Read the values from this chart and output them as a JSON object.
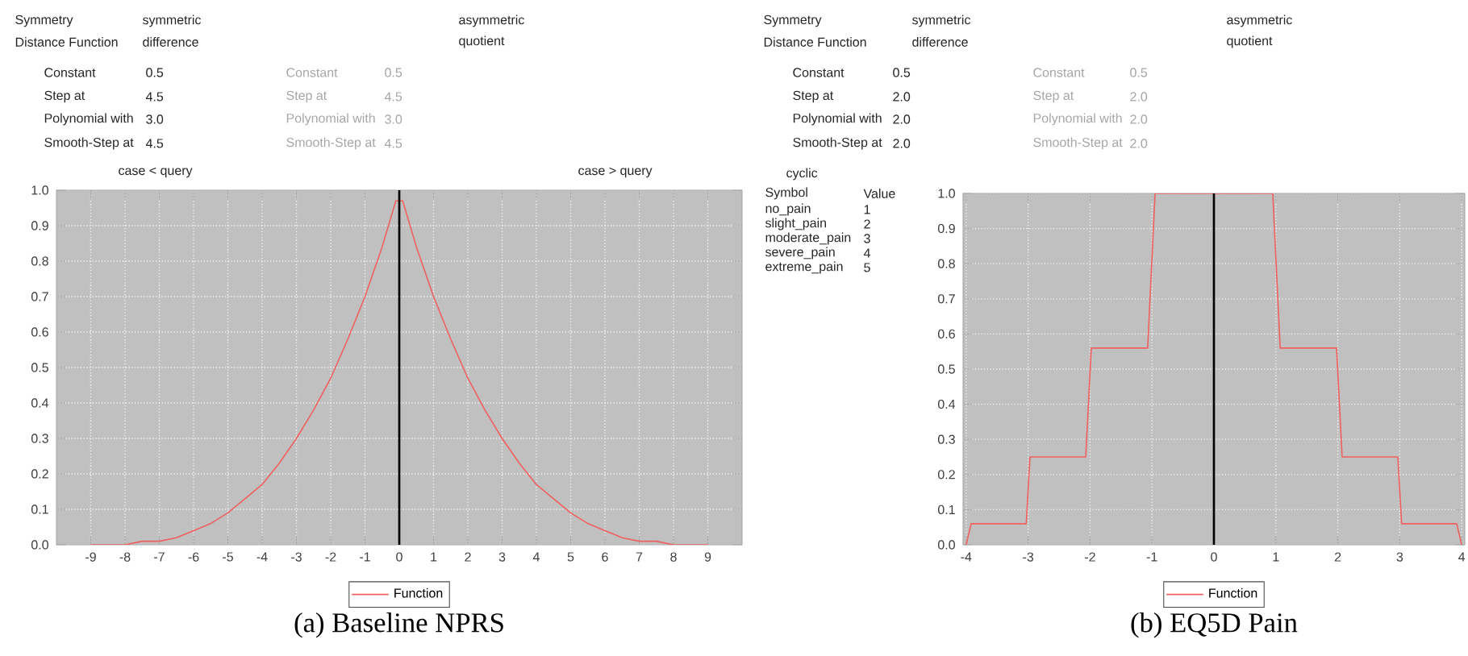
{
  "chart_data": [
    {
      "type": "line",
      "title": "(a) Baseline NPRS",
      "annotations": [
        "Symmetry",
        "symmetric",
        "asymmetric",
        "Distance Function",
        "difference",
        "quotient",
        "Constant",
        "0.5",
        "Constant",
        "0.5",
        "Step at",
        "4.5",
        "Step at",
        "4.5",
        "Polynomial with",
        "3.0",
        "Polynomial with",
        "3.0",
        "Smooth-Step at",
        "4.5",
        "Smooth-Step at",
        "4.5",
        "case < query",
        "case > query"
      ],
      "x": [
        -9,
        -8.5,
        -8,
        -7.5,
        -7,
        -6.5,
        -6,
        -5.5,
        -5,
        -4.5,
        -4,
        -3.5,
        -3,
        -2.5,
        -2,
        -1.5,
        -1,
        -0.5,
        -0.1,
        0.1,
        0.5,
        1,
        1.5,
        2,
        2.5,
        3,
        3.5,
        4,
        4.5,
        5,
        5.5,
        6,
        6.5,
        7,
        7.5,
        8,
        8.5,
        9
      ],
      "series": [
        {
          "name": "Function",
          "color": "#f06060",
          "values": [
            0,
            0,
            0,
            0.01,
            0.01,
            0.02,
            0.04,
            0.06,
            0.09,
            0.13,
            0.17,
            0.23,
            0.3,
            0.38,
            0.47,
            0.58,
            0.7,
            0.84,
            0.97,
            0.97,
            0.84,
            0.7,
            0.58,
            0.47,
            0.38,
            0.3,
            0.23,
            0.17,
            0.13,
            0.09,
            0.06,
            0.04,
            0.02,
            0.01,
            0.01,
            0,
            0,
            0
          ]
        }
      ],
      "xlim": [
        -10,
        10
      ],
      "xticks": [
        -9,
        -8,
        -7,
        -6,
        -5,
        -4,
        -3,
        -2,
        -1,
        0,
        1,
        2,
        3,
        4,
        5,
        6,
        7,
        8,
        9
      ],
      "ylim": [
        0,
        1
      ],
      "yticks": [
        {
          "value": 0,
          "label": "0.0"
        },
        {
          "value": 0.1,
          "label": "0.1"
        },
        {
          "value": 0.2,
          "label": "0.2"
        },
        {
          "value": 0.3,
          "label": "0.3"
        },
        {
          "value": 0.4,
          "label": "0.4"
        },
        {
          "value": 0.5,
          "label": "0.5"
        },
        {
          "value": 0.6,
          "label": "0.6"
        },
        {
          "value": 0.7,
          "label": "0.7"
        },
        {
          "value": 0.8,
          "label": "0.8"
        },
        {
          "value": 0.9,
          "label": "0.9"
        },
        {
          "value": 1,
          "label": "1.0"
        }
      ],
      "ref_lines": [
        {
          "axis": "x",
          "value": 0,
          "color": "#000000"
        }
      ],
      "grid": true,
      "legend": "bottom"
    },
    {
      "type": "line",
      "title": "(b) EQ5D Pain",
      "annotations": [
        "Symmetry",
        "symmetric",
        "asymmetric",
        "Distance Function",
        "difference",
        "quotient",
        "Constant",
        "0.5",
        "Constant",
        "0.5",
        "Step at",
        "2.0",
        "Step at",
        "2.0",
        "Polynomial with",
        "2.0",
        "Polynomial with",
        "2.0",
        "Smooth-Step at",
        "2.0",
        "Smooth-Step at",
        "2.0",
        "cyclic",
        "Symbol",
        "Value",
        "no_pain",
        "1",
        "slight_pain",
        "2",
        "moderate_pain",
        "3",
        "severe_pain",
        "4",
        "extreme_pain",
        "5"
      ],
      "x": [
        -4,
        -3.92,
        -3.03,
        -2.97,
        -2.07,
        -1.98,
        -1.07,
        -0.95,
        0.95,
        1.07,
        1.98,
        2.07,
        2.97,
        3.03,
        3.92,
        4
      ],
      "series": [
        {
          "name": "Function",
          "color": "#f06060",
          "values": [
            0,
            0.06,
            0.06,
            0.25,
            0.25,
            0.56,
            0.56,
            1,
            1,
            0.56,
            0.56,
            0.25,
            0.25,
            0.06,
            0.06,
            0
          ]
        }
      ],
      "xlim": [
        -4.05,
        4.05
      ],
      "xticks": [
        -4,
        -3,
        -2,
        -1,
        0,
        1,
        2,
        3,
        4
      ],
      "ylim": [
        0,
        1
      ],
      "yticks": [
        {
          "value": 0,
          "label": "0.0"
        },
        {
          "value": 0.1,
          "label": "0.1"
        },
        {
          "value": 0.2,
          "label": "0.2"
        },
        {
          "value": 0.3,
          "label": "0.3"
        },
        {
          "value": 0.4,
          "label": "0.4"
        },
        {
          "value": 0.5,
          "label": "0.5"
        },
        {
          "value": 0.6,
          "label": "0.6"
        },
        {
          "value": 0.7,
          "label": "0.7"
        },
        {
          "value": 0.8,
          "label": "0.8"
        },
        {
          "value": 0.9,
          "label": "0.9"
        },
        {
          "value": 1,
          "label": "1.0"
        }
      ],
      "ref_lines": [
        {
          "axis": "x",
          "value": 0,
          "color": "#000000"
        }
      ],
      "grid": true,
      "legend": "bottom"
    }
  ]
}
